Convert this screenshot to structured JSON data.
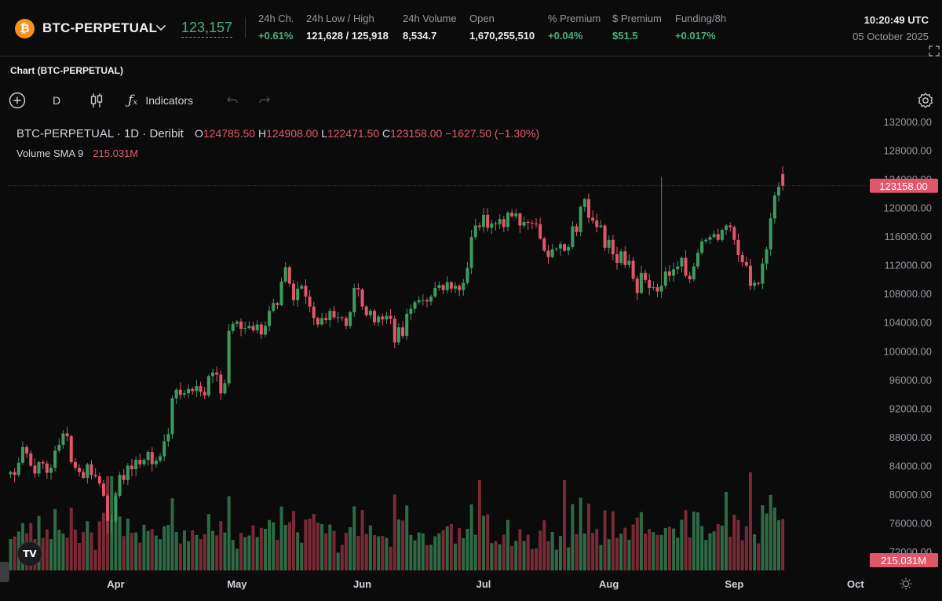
{
  "header": {
    "instrument": "BTC-PERPETUAL",
    "last_price": "123,157",
    "stats": [
      {
        "label": "24h Ch.",
        "value": "+0.61%",
        "color": "green"
      },
      {
        "label": "24h Low / High",
        "value": "121,628 / 125,918",
        "color": "white"
      },
      {
        "label": "24h Volume",
        "value": "8,534.7",
        "color": "white"
      },
      {
        "label": "Open",
        "value": "1,670,255,510",
        "color": "white"
      },
      {
        "label": "% Premium",
        "value": "+0.04%",
        "color": "green"
      },
      {
        "label": "$ Premium",
        "value": "$51.5",
        "color": "green"
      },
      {
        "label": "Funding/8h",
        "value": "+0.017%",
        "color": "green"
      }
    ],
    "time": "10:20:49 UTC",
    "date": "05 October 2025"
  },
  "panel": {
    "title": "Chart (BTC-PERPETUAL)"
  },
  "toolbar": {
    "interval": "D",
    "indicators_label": "Indicators"
  },
  "legend": {
    "title": "BTC-PERPETUAL · 1D · Deribit",
    "open_key": "O",
    "open": "124785.50",
    "high_key": "H",
    "high": "124908.00",
    "low_key": "L",
    "low": "122471.50",
    "close_key": "C",
    "close": "123158.00",
    "change": "−1627.50 (−1.30%)",
    "volume_label": "Volume SMA 9",
    "volume_value": "215.031M"
  },
  "chart_data": {
    "type": "candlestick",
    "symbol": "BTC-PERPETUAL",
    "interval": "1D",
    "exchange": "Deribit",
    "colors": {
      "up": "#3f9a62",
      "down": "#e0566a",
      "up_volume": "#2e6b45",
      "down_volume": "#7a2a36"
    },
    "y_axis_ticks": [
      132000,
      128000,
      124000,
      120000,
      116000,
      112000,
      108000,
      104000,
      100000,
      96000,
      92000,
      88000,
      84000,
      80000,
      76000,
      72000
    ],
    "y_axis_labels": [
      "132000.00",
      "128000.00",
      "124000.00",
      "120000.00",
      "116000.00",
      "112000.00",
      "108000.00",
      "104000.00",
      "100000.00",
      "96000.00",
      "92000.00",
      "88000.00",
      "84000.00",
      "80000.00",
      "76000.00",
      "72000.00"
    ],
    "ylim": [
      70000,
      133500
    ],
    "x_axis_labels": [
      "Apr",
      "May",
      "Jun",
      "Jul",
      "Aug",
      "Sep",
      "Oct"
    ],
    "x_axis_label_days": [
      "2025-04-01",
      "2025-05-01",
      "2025-06-01",
      "2025-07-01",
      "2025-08-01",
      "2025-09-01",
      "2025-10-01"
    ],
    "start_date": "2025-03-06",
    "last_price_label": "123158.00",
    "volume_sma_label": "215.031M",
    "closes": [
      83200,
      82800,
      84500,
      86700,
      85800,
      84100,
      83000,
      84600,
      84400,
      83100,
      83800,
      86200,
      87000,
      88600,
      88200,
      84600,
      83800,
      83200,
      82400,
      84300,
      82800,
      82600,
      81600,
      79900,
      76400,
      76400,
      79900,
      82800,
      82100,
      84100,
      83600,
      84900,
      84300,
      84900,
      86000,
      84300,
      84800,
      85400,
      87500,
      88500,
      93500,
      94700,
      94000,
      94200,
      94800,
      94500,
      95200,
      94400,
      93900,
      96600,
      97100,
      96800,
      94200,
      95600,
      102900,
      103900,
      104200,
      103200,
      103300,
      103600,
      103000,
      103800,
      102400,
      103600,
      105700,
      106800,
      106500,
      109800,
      111800,
      109500,
      107200,
      108800,
      109200,
      107700,
      106300,
      104700,
      103800,
      104700,
      104400,
      105700,
      104800,
      104800,
      104700,
      103600,
      105500,
      108900,
      108700,
      106300,
      105100,
      105700,
      104100,
      104900,
      104500,
      105000,
      104600,
      101300,
      103400,
      102200,
      105300,
      106000,
      106900,
      107200,
      107200,
      107000,
      107700,
      108900,
      109300,
      108600,
      109700,
      108800,
      109200,
      108600,
      109600,
      111700,
      116000,
      117600,
      117400,
      119100,
      117300,
      117900,
      117800,
      118500,
      117400,
      119400,
      118900,
      119300,
      117600,
      118100,
      118000,
      117900,
      117800,
      115800,
      114100,
      113200,
      114300,
      114400,
      115000,
      114100,
      114600,
      117500,
      116700,
      120200,
      121300,
      118700,
      118300,
      117400,
      117600,
      114500,
      115600,
      113600,
      112400,
      114000,
      112100,
      112700,
      110200,
      108200,
      111000,
      110000,
      108900,
      109000,
      108400,
      109200,
      111200,
      110600,
      111500,
      111900,
      113100,
      110600,
      110100,
      111900,
      113800,
      115400,
      115600,
      116000,
      116400,
      115600,
      117000,
      117600,
      117400,
      115600,
      113500,
      112500,
      112000,
      109200,
      109600,
      109500,
      112300,
      114300,
      118600,
      121800,
      123000,
      123200
    ],
    "last_candle": {
      "open": 124785.5,
      "high": 124908,
      "low": 122471.5,
      "close": 123158
    }
  }
}
